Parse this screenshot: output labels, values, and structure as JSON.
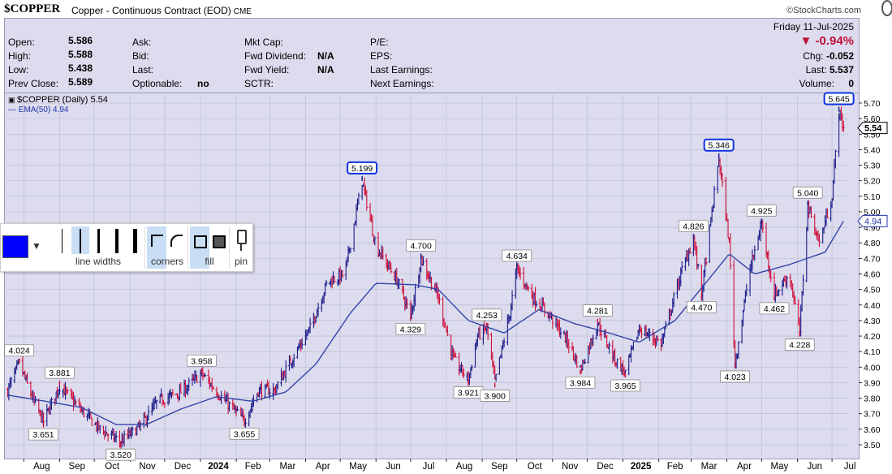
{
  "header": {
    "symbol": "$COPPER",
    "description": "Copper - Continuous Contract (EOD)",
    "exchange": "CME",
    "brand": "©StockCharts.com"
  },
  "info": {
    "open_label": "Open:",
    "open": "5.586",
    "high_label": "High:",
    "high": "5.588",
    "low_label": "Low:",
    "low": "5.438",
    "prev_label": "Prev Close:",
    "prev": "5.589",
    "ask_label": "Ask:",
    "bid_label": "Bid:",
    "last_label": "Last:",
    "optionable_label": "Optionable:",
    "optionable": "no",
    "mktcap_label": "Mkt Cap:",
    "fwddiv_label": "Fwd Dividend:",
    "fwddiv": "N/A",
    "fwdyield_label": "Fwd Yield:",
    "fwdyield": "N/A",
    "sctr_label": "SCTR:",
    "pe_label": "P/E:",
    "eps_label": "EPS:",
    "lastearn_label": "Last Earnings:",
    "nextearn_label": "Next Earnings:",
    "date": "Friday  11-Jul-2025",
    "change_pct": "▼ -0.94%",
    "chg_label": "Chg:",
    "chg": "-0.052",
    "last2_label": "Last:",
    "last2": "5.537",
    "volume_label": "Volume:",
    "volume": "0"
  },
  "legend": {
    "main": "$COPPER (Daily) 5.54",
    "ema": "EMA(50) 4.94"
  },
  "toolbar": {
    "line_widths_label": "line widths",
    "corners_label": "corners",
    "fill_label": "fill",
    "pin_label": "pin",
    "selected_color": "#0000ff"
  },
  "chart_data": {
    "type": "line",
    "y_axis": {
      "min": 3.5,
      "max": 5.7,
      "step": 0.1,
      "side": "right"
    },
    "x_ticks": [
      "Aug",
      "Sep",
      "Oct",
      "Nov",
      "Dec",
      "2024",
      "Feb",
      "Mar",
      "Apr",
      "May",
      "Jun",
      "Jul",
      "Aug",
      "Sep",
      "Oct",
      "Nov",
      "Dec",
      "2025",
      "Feb",
      "Mar",
      "Apr",
      "May",
      "Jun",
      "Jul"
    ],
    "price_colors": {
      "up": "#1a1a8a",
      "down": "#d0103a"
    },
    "ema_color": "#3344aa",
    "last_price_tag": "5.54",
    "ema_tag": "4.94",
    "price_keypoints": [
      [
        "2023-07-18",
        3.85
      ],
      [
        "2023-07-28",
        4.024
      ],
      [
        "2023-08-10",
        3.77
      ],
      [
        "2023-08-18",
        3.651
      ],
      [
        "2023-09-01",
        3.881
      ],
      [
        "2023-09-20",
        3.72
      ],
      [
        "2023-10-06",
        3.6
      ],
      [
        "2023-10-24",
        3.52
      ],
      [
        "2023-11-10",
        3.62
      ],
      [
        "2023-11-25",
        3.78
      ],
      [
        "2023-12-15",
        3.84
      ],
      [
        "2024-01-02",
        3.958
      ],
      [
        "2024-01-20",
        3.8
      ],
      [
        "2024-02-08",
        3.655
      ],
      [
        "2024-02-20",
        3.85
      ],
      [
        "2024-03-05",
        3.85
      ],
      [
        "2024-03-20",
        4.05
      ],
      [
        "2024-04-05",
        4.25
      ],
      [
        "2024-04-20",
        4.55
      ],
      [
        "2024-05-05",
        4.6
      ],
      [
        "2024-05-20",
        5.199
      ],
      [
        "2024-06-01",
        4.78
      ],
      [
        "2024-06-20",
        4.55
      ],
      [
        "2024-07-01",
        4.329
      ],
      [
        "2024-07-10",
        4.7
      ],
      [
        "2024-07-25",
        4.45
      ],
      [
        "2024-08-07",
        4.05
      ],
      [
        "2024-08-20",
        3.921
      ],
      [
        "2024-08-28",
        4.2
      ],
      [
        "2024-09-05",
        4.253
      ],
      [
        "2024-09-12",
        3.9
      ],
      [
        "2024-09-25",
        4.35
      ],
      [
        "2024-10-01",
        4.634
      ],
      [
        "2024-10-15",
        4.45
      ],
      [
        "2024-10-30",
        4.33
      ],
      [
        "2024-11-15",
        4.15
      ],
      [
        "2024-11-25",
        3.984
      ],
      [
        "2024-12-10",
        4.281
      ],
      [
        "2024-12-25",
        4.05
      ],
      [
        "2025-01-03",
        3.965
      ],
      [
        "2025-01-15",
        4.25
      ],
      [
        "2025-02-03",
        4.15
      ],
      [
        "2025-02-20",
        4.6
      ],
      [
        "2025-03-03",
        4.826
      ],
      [
        "2025-03-10",
        4.47
      ],
      [
        "2025-03-25",
        5.346
      ],
      [
        "2025-04-03",
        4.8
      ],
      [
        "2025-04-08",
        4.023
      ],
      [
        "2025-04-20",
        4.6
      ],
      [
        "2025-05-01",
        4.925
      ],
      [
        "2025-05-12",
        4.462
      ],
      [
        "2025-05-25",
        4.6
      ],
      [
        "2025-06-03",
        4.228
      ],
      [
        "2025-06-10",
        5.04
      ],
      [
        "2025-06-20",
        4.8
      ],
      [
        "2025-07-01",
        5.1
      ],
      [
        "2025-07-07",
        5.645
      ],
      [
        "2025-07-11",
        5.54
      ]
    ],
    "ema_keypoints": [
      [
        "2023-07-18",
        3.82
      ],
      [
        "2023-08-20",
        3.78
      ],
      [
        "2023-09-20",
        3.74
      ],
      [
        "2023-10-20",
        3.63
      ],
      [
        "2023-11-15",
        3.63
      ],
      [
        "2023-12-15",
        3.73
      ],
      [
        "2024-01-15",
        3.81
      ],
      [
        "2024-02-15",
        3.78
      ],
      [
        "2024-03-15",
        3.84
      ],
      [
        "2024-04-10",
        4.02
      ],
      [
        "2024-05-10",
        4.35
      ],
      [
        "2024-06-01",
        4.54
      ],
      [
        "2024-07-05",
        4.53
      ],
      [
        "2024-07-25",
        4.5
      ],
      [
        "2024-08-20",
        4.3
      ],
      [
        "2024-09-20",
        4.22
      ],
      [
        "2024-10-20",
        4.37
      ],
      [
        "2024-11-20",
        4.28
      ],
      [
        "2024-12-20",
        4.22
      ],
      [
        "2025-01-15",
        4.16
      ],
      [
        "2025-02-15",
        4.3
      ],
      [
        "2025-03-20",
        4.6
      ],
      [
        "2025-04-03",
        4.73
      ],
      [
        "2025-04-25",
        4.6
      ],
      [
        "2025-05-25",
        4.66
      ],
      [
        "2025-06-25",
        4.74
      ],
      [
        "2025-07-11",
        4.94
      ]
    ],
    "annotations": [
      {
        "date": "2023-07-28",
        "value": 4.024,
        "label": "4.024",
        "pos": "above"
      },
      {
        "date": "2023-08-18",
        "value": 3.651,
        "label": "3.651",
        "pos": "below"
      },
      {
        "date": "2023-09-01",
        "value": 3.881,
        "label": "3.881",
        "pos": "above"
      },
      {
        "date": "2023-10-24",
        "value": 3.52,
        "label": "3.520",
        "pos": "below"
      },
      {
        "date": "2024-01-02",
        "value": 3.958,
        "label": "3.958",
        "pos": "above"
      },
      {
        "date": "2024-02-08",
        "value": 3.655,
        "label": "3.655",
        "pos": "below"
      },
      {
        "date": "2024-05-20",
        "value": 5.199,
        "label": "5.199",
        "pos": "above",
        "highlight": true
      },
      {
        "date": "2024-07-01",
        "value": 4.329,
        "label": "4.329",
        "pos": "below"
      },
      {
        "date": "2024-07-10",
        "value": 4.7,
        "label": "4.700",
        "pos": "above"
      },
      {
        "date": "2024-08-20",
        "value": 3.921,
        "label": "3.921",
        "pos": "below"
      },
      {
        "date": "2024-09-05",
        "value": 4.253,
        "label": "4.253",
        "pos": "above"
      },
      {
        "date": "2024-09-12",
        "value": 3.9,
        "label": "3.900",
        "pos": "below"
      },
      {
        "date": "2024-10-01",
        "value": 4.634,
        "label": "4.634",
        "pos": "above"
      },
      {
        "date": "2024-11-25",
        "value": 3.984,
        "label": "3.984",
        "pos": "below"
      },
      {
        "date": "2024-12-10",
        "value": 4.281,
        "label": "4.281",
        "pos": "above"
      },
      {
        "date": "2025-01-03",
        "value": 3.965,
        "label": "3.965",
        "pos": "below"
      },
      {
        "date": "2025-03-03",
        "value": 4.826,
        "label": "4.826",
        "pos": "above"
      },
      {
        "date": "2025-03-10",
        "value": 4.47,
        "label": "4.470",
        "pos": "below"
      },
      {
        "date": "2025-03-25",
        "value": 5.346,
        "label": "5.346",
        "pos": "above",
        "highlight": true
      },
      {
        "date": "2025-04-08",
        "value": 4.023,
        "label": "4.023",
        "pos": "below"
      },
      {
        "date": "2025-05-01",
        "value": 4.925,
        "label": "4.925",
        "pos": "above"
      },
      {
        "date": "2025-05-12",
        "value": 4.462,
        "label": "4.462",
        "pos": "below"
      },
      {
        "date": "2025-06-03",
        "value": 4.228,
        "label": "4.228",
        "pos": "below"
      },
      {
        "date": "2025-06-10",
        "value": 5.04,
        "label": "5.040",
        "pos": "above"
      },
      {
        "date": "2025-07-07",
        "value": 5.645,
        "label": "5.645",
        "pos": "above",
        "highlight": true
      }
    ]
  }
}
